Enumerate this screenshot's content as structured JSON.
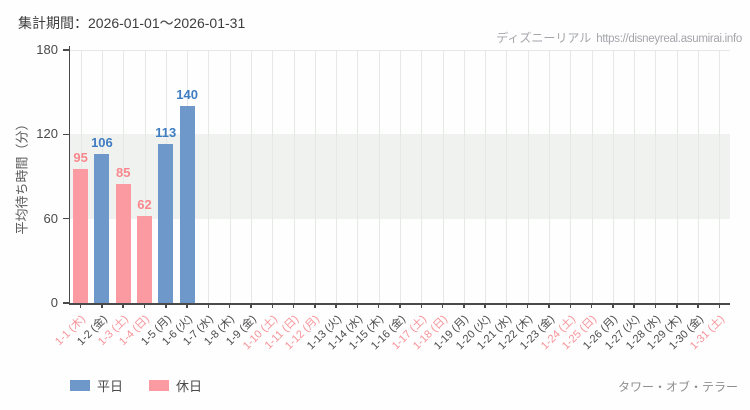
{
  "page": {
    "title": "集計期間：2026-01-01～2026-01-31",
    "watermark": {
      "site": "ディズニーリアル",
      "url": "https://disneyreal.asumirai.info"
    },
    "attraction": "タワー・オブ・テラー",
    "background": "#fdfefd"
  },
  "colors": {
    "axis": "#4a4a4a",
    "grid": "#e5e8e5",
    "band": "#f0f2ef",
    "tick_label": "#4a4a4a",
    "weekday_label": "#4b4b4b",
    "holiday_label": "#f7939a",
    "legend_text": "#4a4a4a",
    "title_text": "#3d3d3d",
    "watermark_text": "#a4a4aa",
    "attraction_text": "#8f8f8f"
  },
  "chart_data": {
    "type": "bar",
    "title": "集計期間：2026-01-01～2026-01-31",
    "xlabel": "",
    "ylabel": "平均待ち時間（分）",
    "ylim": [
      0,
      180
    ],
    "yticks": [
      0,
      60,
      120,
      180
    ],
    "band": {
      "from": 60,
      "to": 120
    },
    "grid": true,
    "legend_position": "bottom-left",
    "categories": [
      "1-1 (木)",
      "1-2 (金)",
      "1-3 (土)",
      "1-4 (日)",
      "1-5 (月)",
      "1-6 (火)",
      "1-7 (水)",
      "1-8 (木)",
      "1-9 (金)",
      "1-10 (土)",
      "1-11 (日)",
      "1-12 (月)",
      "1-13 (火)",
      "1-14 (水)",
      "1-15 (木)",
      "1-16 (金)",
      "1-17 (土)",
      "1-18 (日)",
      "1-19 (月)",
      "1-20 (火)",
      "1-21 (水)",
      "1-22 (木)",
      "1-23 (金)",
      "1-24 (土)",
      "1-25 (日)",
      "1-26 (月)",
      "1-27 (火)",
      "1-28 (水)",
      "1-29 (木)",
      "1-30 (金)",
      "1-31 (土)"
    ],
    "holiday_flags": [
      true,
      false,
      true,
      true,
      false,
      false,
      false,
      false,
      false,
      true,
      true,
      true,
      false,
      false,
      false,
      false,
      true,
      true,
      false,
      false,
      false,
      false,
      false,
      true,
      true,
      false,
      false,
      false,
      false,
      false,
      true
    ],
    "series": [
      {
        "name": "平日",
        "color": "#6e98c9",
        "value_label_color": "#3f7dc3",
        "values": [
          null,
          106,
          null,
          null,
          113,
          140,
          null,
          null,
          null,
          null,
          null,
          null,
          null,
          null,
          null,
          null,
          null,
          null,
          null,
          null,
          null,
          null,
          null,
          null,
          null,
          null,
          null,
          null,
          null,
          null,
          null
        ]
      },
      {
        "name": "休日",
        "color": "#fb9aa1",
        "value_label_color": "#f8878d",
        "values": [
          95,
          null,
          85,
          62,
          null,
          null,
          null,
          null,
          null,
          null,
          null,
          null,
          null,
          null,
          null,
          null,
          null,
          null,
          null,
          null,
          null,
          null,
          null,
          null,
          null,
          null,
          null,
          null,
          null,
          null,
          null
        ]
      }
    ]
  }
}
